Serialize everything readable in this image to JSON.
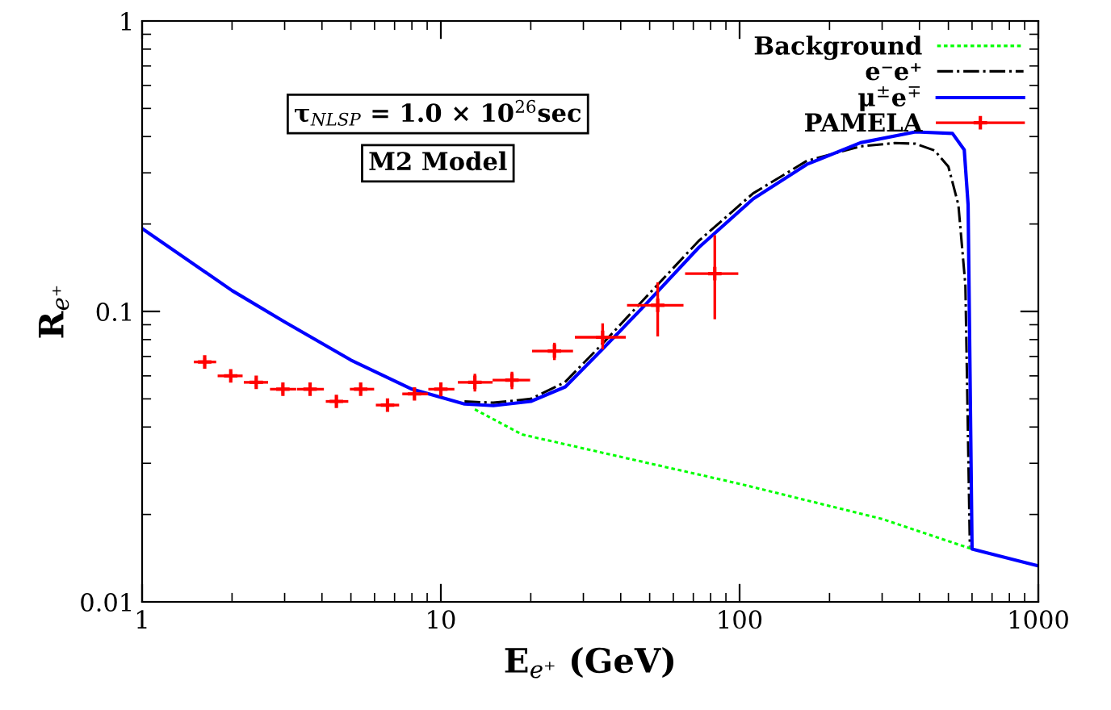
{
  "chart_data": {
    "type": "line",
    "xlabel": "E$_{e⁺}$ (GeV)",
    "ylabel": "R$_{e⁺}$",
    "log": "xy",
    "xlim": [
      1,
      1000
    ],
    "ylim": [
      0.01,
      1
    ],
    "xticks": [
      1,
      10,
      100,
      1000
    ],
    "yticks": [
      0.01,
      0.1,
      1
    ],
    "grid": false,
    "legend": "top right",
    "annotations": [
      "τ$_{NLSP}$ = 1.0 × 10$^{26}$sec",
      "M2 Model"
    ],
    "series": [
      {
        "name": "Background",
        "color": "#00ff00",
        "line_style": "dotted",
        "x": [
          13,
          18.7,
          100,
          300,
          600
        ],
        "values": [
          0.046,
          0.0377,
          0.0255,
          0.0193,
          0.0152
        ]
      },
      {
        "name": "e⁻e⁺",
        "color": "#000000",
        "line_style": "dashdot",
        "x": [
          12,
          15,
          20,
          26,
          35,
          48.6,
          73,
          111,
          168,
          254,
          330,
          388,
          450,
          500,
          540,
          570,
          590
        ],
        "values": [
          0.049,
          0.0485,
          0.05,
          0.057,
          0.078,
          0.112,
          0.175,
          0.255,
          0.33,
          0.37,
          0.38,
          0.378,
          0.358,
          0.315,
          0.233,
          0.123,
          0.0155
        ]
      },
      {
        "name": "μ$^{±}$e$^{∓}$",
        "color": "#0000ff",
        "line_style": "solid",
        "x": [
          1,
          2,
          3,
          5,
          8,
          12,
          15,
          20,
          26.1,
          34.7,
          48.6,
          73,
          111,
          168,
          254,
          388,
          516,
          565,
          582,
          600,
          1000
        ],
        "values": [
          0.193,
          0.118,
          0.092,
          0.068,
          0.054,
          0.048,
          0.0474,
          0.049,
          0.055,
          0.074,
          0.106,
          0.166,
          0.244,
          0.321,
          0.381,
          0.415,
          0.41,
          0.36,
          0.233,
          0.0152,
          0.0133
        ]
      },
      {
        "name": "PAMELA",
        "type": "scatter",
        "color": "#ff0000",
        "marker": "cross",
        "x": [
          1.62,
          1.98,
          2.41,
          2.96,
          3.65,
          4.47,
          5.39,
          6.63,
          8.16,
          10.0,
          13.0,
          17.3,
          24.0,
          34.8,
          53.2,
          82.6
        ],
        "values": [
          0.067,
          0.06,
          0.057,
          0.054,
          0.054,
          0.049,
          0.054,
          0.0476,
          0.052,
          0.054,
          0.057,
          0.058,
          0.073,
          0.0815,
          0.105,
          0.135
        ],
        "errors": [
          0.002,
          0.002,
          0.002,
          0.002,
          0.002,
          0.002,
          0.002,
          0.002,
          0.002,
          0.003,
          0.004,
          0.004,
          0.005,
          [
            0.074,
            0.091
          ],
          [
            0.082,
            0.126
          ],
          [
            0.094,
            0.183
          ]
        ],
        "xerrors": [
          [
            1.49,
            1.77
          ],
          [
            1.79,
            2.17
          ],
          [
            2.19,
            2.64
          ],
          [
            2.68,
            3.28
          ],
          [
            3.3,
            4.06
          ],
          [
            4.12,
            4.9
          ],
          [
            4.96,
            5.98
          ],
          [
            6.06,
            7.25
          ],
          [
            7.43,
            9.06
          ],
          [
            9.08,
            11.1
          ],
          [
            11.4,
            14.9
          ],
          [
            14.9,
            19.9
          ],
          [
            20.2,
            27.7
          ],
          [
            28.1,
            41.6
          ],
          [
            42,
            64.9
          ],
          [
            65.7,
            99
          ]
        ]
      }
    ]
  }
}
